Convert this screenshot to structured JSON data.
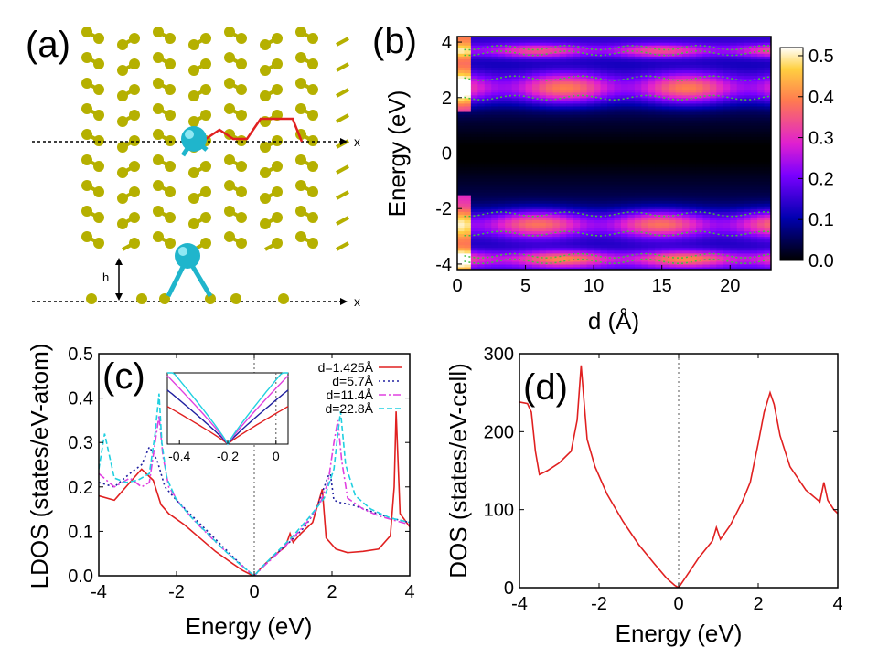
{
  "panel_labels": {
    "a": "(a)",
    "b": "(b)",
    "c": "(c)",
    "d": "(d)"
  },
  "panel_a": {
    "type": "illustration",
    "atoms": "graphene",
    "adatom": "cyan",
    "axis_label_top": "x",
    "axis_label_bottom": "x",
    "height_label": "h",
    "colors": {
      "carbon": "#b5b000",
      "adatom": "#1fb5cc",
      "path": "#e02020"
    }
  },
  "chart_data": [
    {
      "id": "b",
      "type": "heatmap",
      "xlabel": "d (Å)",
      "ylabel": "Energy (eV)",
      "xlim": [
        0,
        23
      ],
      "ylim": [
        -4.2,
        4.2
      ],
      "xticks": [
        "0",
        "5",
        "10",
        "15",
        "20"
      ],
      "xtick_values": [
        0,
        5,
        10,
        15,
        20
      ],
      "yticks": [
        "-4",
        "-2",
        "0",
        "2",
        "4"
      ],
      "ytick_values": [
        -4,
        -2,
        0,
        2,
        4
      ],
      "colorbar": {
        "ticks": [
          "0.0",
          "0.1",
          "0.2",
          "0.3",
          "0.4",
          "0.5"
        ],
        "tick_values": [
          0,
          0.1,
          0.2,
          0.3,
          0.4,
          0.5
        ],
        "range": [
          0,
          0.52
        ]
      },
      "bands": [
        {
          "center": 2.35,
          "width": 0.55,
          "intensity": 0.32
        },
        {
          "center": -2.55,
          "width": 0.5,
          "intensity": 0.3
        },
        {
          "center": 3.7,
          "width": 0.25,
          "intensity": 0.22
        },
        {
          "center": -3.8,
          "width": 0.3,
          "intensity": 0.28
        }
      ],
      "contour_level": 0.25
    },
    {
      "id": "c",
      "type": "line",
      "xlabel": "Energy (eV)",
      "ylabel": "LDOS (states/eV-atom)",
      "xlim": [
        -4,
        4
      ],
      "ylim": [
        0,
        0.5
      ],
      "xticks": [
        "-4",
        "-2",
        "0",
        "2",
        "4"
      ],
      "xtick_values": [
        -4,
        -2,
        0,
        2,
        4
      ],
      "yticks": [
        "0.0",
        "0.1",
        "0.2",
        "0.3",
        "0.4",
        "0.5"
      ],
      "ytick_values": [
        0,
        0.1,
        0.2,
        0.3,
        0.4,
        0.5
      ],
      "series": [
        {
          "name": "d=1.425Å",
          "color": "#e02020",
          "dash": "",
          "x": [
            -4,
            -3.6,
            -3.2,
            -2.9,
            -2.6,
            -2.4,
            -2.2,
            -1.8,
            -1.4,
            -1,
            -0.6,
            -0.3,
            -0.1,
            0,
            0.2,
            0.5,
            0.8,
            0.92,
            1.0,
            1.2,
            1.5,
            1.7,
            1.75,
            1.85,
            2.1,
            2.4,
            2.8,
            3.2,
            3.5,
            3.6,
            3.65,
            3.75,
            4
          ],
          "y": [
            0.18,
            0.17,
            0.21,
            0.24,
            0.215,
            0.16,
            0.14,
            0.115,
            0.085,
            0.055,
            0.03,
            0.012,
            0.003,
            0.0,
            0.02,
            0.045,
            0.065,
            0.095,
            0.075,
            0.095,
            0.12,
            0.18,
            0.195,
            0.085,
            0.06,
            0.052,
            0.055,
            0.06,
            0.09,
            0.2,
            0.37,
            0.14,
            0.11
          ]
        },
        {
          "name": "d=5.7Å",
          "color": "#2020a0",
          "dash": "2,3",
          "x": [
            -4,
            -3.6,
            -3.2,
            -2.9,
            -2.7,
            -2.5,
            -2.3,
            -2,
            -1.6,
            -1.2,
            -0.8,
            -0.4,
            -0.1,
            0,
            0.2,
            0.5,
            0.9,
            1.3,
            1.6,
            1.8,
            1.95,
            2.05,
            2.2,
            2.5,
            3,
            3.5,
            4
          ],
          "y": [
            0.21,
            0.2,
            0.23,
            0.25,
            0.29,
            0.26,
            0.2,
            0.17,
            0.135,
            0.1,
            0.065,
            0.03,
            0.006,
            0.0,
            0.018,
            0.045,
            0.075,
            0.11,
            0.15,
            0.2,
            0.235,
            0.17,
            0.165,
            0.16,
            0.145,
            0.13,
            0.12
          ]
        },
        {
          "name": "d=11.4Å",
          "color": "#e040e0",
          "dash": "8,3,2,3",
          "x": [
            -4,
            -3.6,
            -3.2,
            -2.9,
            -2.7,
            -2.55,
            -2.45,
            -2.35,
            -2.2,
            -1.9,
            -1.5,
            -1.1,
            -0.7,
            -0.35,
            -0.1,
            0,
            0.2,
            0.6,
            1,
            1.4,
            1.7,
            1.9,
            2.05,
            2.15,
            2.25,
            2.4,
            2.8,
            3.2,
            3.6,
            4
          ],
          "y": [
            0.23,
            0.2,
            0.22,
            0.2,
            0.21,
            0.3,
            0.36,
            0.27,
            0.2,
            0.16,
            0.12,
            0.085,
            0.052,
            0.025,
            0.007,
            0.0,
            0.018,
            0.05,
            0.085,
            0.125,
            0.165,
            0.21,
            0.3,
            0.35,
            0.26,
            0.175,
            0.15,
            0.135,
            0.125,
            0.115
          ]
        },
        {
          "name": "d=22.8Å",
          "color": "#20d0e0",
          "dash": "6,3",
          "x": [
            -4,
            -3.85,
            -3.75,
            -3.6,
            -3.3,
            -3,
            -2.7,
            -2.55,
            -2.45,
            -2.38,
            -2.25,
            -2,
            -1.6,
            -1.2,
            -0.8,
            -0.4,
            -0.1,
            0,
            0.2,
            0.6,
            1,
            1.4,
            1.8,
            2.05,
            2.15,
            2.22,
            2.35,
            2.6,
            3,
            3.5,
            4
          ],
          "y": [
            0.24,
            0.32,
            0.28,
            0.22,
            0.21,
            0.215,
            0.23,
            0.32,
            0.41,
            0.3,
            0.22,
            0.17,
            0.13,
            0.095,
            0.06,
            0.028,
            0.007,
            0.0,
            0.02,
            0.055,
            0.09,
            0.13,
            0.175,
            0.24,
            0.32,
            0.37,
            0.25,
            0.18,
            0.15,
            0.13,
            0.12
          ]
        }
      ],
      "vline_x": 0,
      "inset": {
        "xlim": [
          -0.45,
          0.05
        ],
        "ylim": [
          0,
          0.1
        ],
        "xticks": [
          "-0.4",
          "-0.2",
          "0"
        ],
        "xtick_values": [
          -0.4,
          -0.2,
          0
        ],
        "vline_x": 0,
        "series_slopes": [
          0.18,
          0.26,
          0.33,
          0.38
        ]
      }
    },
    {
      "id": "d",
      "type": "line",
      "xlabel": "Energy (eV)",
      "ylabel": "DOS (states/eV-cell)",
      "xlim": [
        -4,
        4
      ],
      "ylim": [
        0,
        300
      ],
      "xticks": [
        "-4",
        "-2",
        "0",
        "2",
        "4"
      ],
      "xtick_values": [
        -4,
        -2,
        0,
        2,
        4
      ],
      "yticks": [
        "0",
        "100",
        "200",
        "300"
      ],
      "ytick_values": [
        0,
        100,
        200,
        300
      ],
      "series": [
        {
          "name": "DOS",
          "color": "#e02020",
          "x": [
            -4,
            -3.8,
            -3.7,
            -3.6,
            -3.5,
            -3.3,
            -3.0,
            -2.7,
            -2.55,
            -2.45,
            -2.38,
            -2.3,
            -2.1,
            -1.8,
            -1.4,
            -1.0,
            -0.6,
            -0.3,
            -0.1,
            0,
            0.2,
            0.5,
            0.85,
            0.95,
            1.05,
            1.3,
            1.6,
            1.8,
            2.0,
            2.15,
            2.3,
            2.4,
            2.55,
            2.8,
            3.2,
            3.55,
            3.65,
            3.75,
            3.9,
            4
          ],
          "y": [
            238,
            236,
            225,
            175,
            145,
            150,
            160,
            175,
            215,
            285,
            240,
            190,
            155,
            120,
            85,
            55,
            30,
            12,
            3,
            0,
            15,
            38,
            60,
            77,
            62,
            80,
            110,
            135,
            185,
            225,
            250,
            235,
            195,
            155,
            125,
            110,
            135,
            112,
            100,
            95
          ]
        }
      ],
      "vline_x": 0
    }
  ]
}
